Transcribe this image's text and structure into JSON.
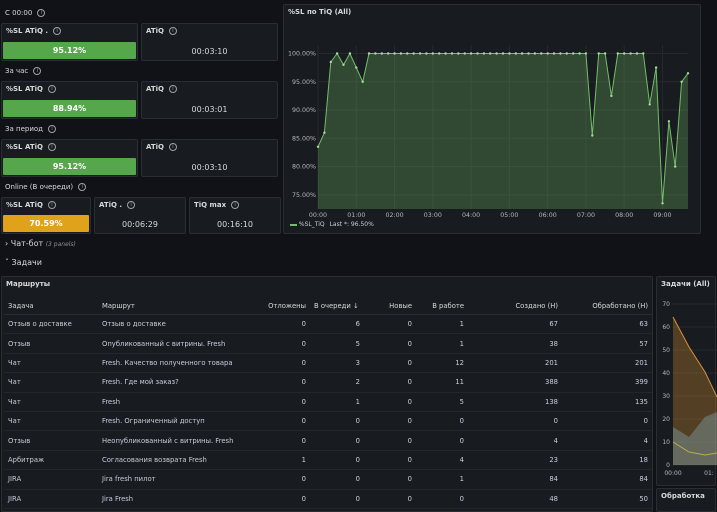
{
  "sections": {
    "c0000": "С 00:00",
    "hour": "За час",
    "period": "За период",
    "online": "Online (В очереди)"
  },
  "stats": {
    "row1": {
      "sl_title": "%SL ATiQ .",
      "sl_value": "95.12%",
      "sl_percent": 95.12,
      "atiq_title": "ATiQ",
      "atiq_value": "00:03:10"
    },
    "row2": {
      "sl_title": "%SL ATiQ",
      "sl_value": "88.94%",
      "sl_percent": 88.94,
      "atiq_title": "ATiQ",
      "atiq_value": "00:03:01"
    },
    "row3": {
      "sl_title": "%SL ATiQ",
      "sl_value": "95.12%",
      "sl_percent": 95.12,
      "atiq_title": "ATiQ",
      "atiq_value": "00:03:10"
    },
    "row4": {
      "sl_title": "%SL ATiQ",
      "sl_value": "70.59%",
      "sl_percent": 70.59,
      "atiq_title": "ATiQ .",
      "atiq_value": "00:06:29",
      "tiq_title": "TiQ max",
      "tiq_value": "00:16:10"
    }
  },
  "colors": {
    "green": "#56a64b",
    "orange": "#e0a11b",
    "series": "#73bf69"
  },
  "chart_data": {
    "type": "line",
    "title": "%SL по TiQ (All)",
    "x": [
      "00:00",
      "00:10",
      "00:20",
      "00:30",
      "00:40",
      "00:50",
      "01:00",
      "01:10",
      "01:20",
      "01:30",
      "01:40",
      "01:50",
      "02:00",
      "02:10",
      "02:20",
      "02:30",
      "02:40",
      "02:50",
      "03:00",
      "03:10",
      "03:20",
      "03:30",
      "03:40",
      "03:50",
      "04:00",
      "04:10",
      "04:20",
      "04:30",
      "04:40",
      "04:50",
      "05:00",
      "05:10",
      "05:20",
      "05:30",
      "05:40",
      "05:50",
      "06:00",
      "06:10",
      "06:20",
      "06:30",
      "06:40",
      "06:50",
      "07:00",
      "07:10",
      "07:20",
      "07:30",
      "07:40",
      "07:50",
      "08:00",
      "08:10",
      "08:20",
      "08:30",
      "08:40",
      "08:50",
      "09:00",
      "09:10",
      "09:20",
      "09:30",
      "09:40"
    ],
    "series": [
      {
        "name": "%SL_TiQ",
        "values": [
          83.5,
          86,
          98.5,
          100,
          98,
          100,
          97.5,
          95,
          100,
          100,
          100,
          100,
          100,
          100,
          100,
          100,
          100,
          100,
          100,
          100,
          100,
          100,
          100,
          100,
          100,
          100,
          100,
          100,
          100,
          100,
          100,
          100,
          100,
          100,
          100,
          100,
          100,
          100,
          100,
          100,
          100,
          100,
          100,
          85.5,
          100,
          100,
          92.5,
          100,
          100,
          100,
          100,
          100,
          91,
          97.5,
          73.5,
          88,
          80,
          95,
          96.5
        ]
      }
    ],
    "yticks": [
      "100.00%",
      "95.00%",
      "90.00%",
      "85.00%",
      "80.00%",
      "75.00%"
    ],
    "xticks": [
      "00:00",
      "01:00",
      "02:00",
      "03:00",
      "04:00",
      "05:00",
      "06:00",
      "07:00",
      "08:00",
      "09:00"
    ],
    "ylim": [
      72.5,
      101.5
    ],
    "legend": "%SL_TiQ",
    "legend_last": "Last *: 96.50%",
    "legend_position": "bottom-left"
  },
  "rows": {
    "chatbot": "Чат-бот",
    "chatbot_panels": "(3 panels)",
    "tasks": "Задачи"
  },
  "routes": {
    "title": "Маршруты",
    "columns": [
      "Задача",
      "Маршрут",
      "Отложены",
      "В очереди",
      "Новые",
      "В работе",
      "Создано (Н)",
      "Обработано (Н)"
    ],
    "sort_icon": "↓",
    "rows": [
      [
        "Отзыв о доставке",
        "Отзыв о доставке",
        "0",
        "6",
        "0",
        "1",
        "67",
        "63"
      ],
      [
        "Отзыв",
        "Опубликованный с витрины. Fresh",
        "0",
        "5",
        "0",
        "1",
        "38",
        "57"
      ],
      [
        "Чат",
        "Fresh. Качество полученного товара",
        "0",
        "3",
        "0",
        "12",
        "201",
        "201"
      ],
      [
        "Чат",
        "Fresh. Где мой заказ?",
        "0",
        "2",
        "0",
        "11",
        "388",
        "399"
      ],
      [
        "Чат",
        "Fresh",
        "0",
        "1",
        "0",
        "5",
        "138",
        "135"
      ],
      [
        "Чат",
        "Fresh. Ограниченный доступ",
        "0",
        "0",
        "0",
        "0",
        "0",
        "0"
      ],
      [
        "Отзыв",
        "Неопубликованный с витрины. Fresh",
        "0",
        "0",
        "0",
        "0",
        "4",
        "4"
      ],
      [
        "Арбитраж",
        "Согласования возврата Fresh",
        "1",
        "0",
        "0",
        "4",
        "23",
        "18"
      ],
      [
        "JIRA",
        "Jira fresh пилот",
        "0",
        "0",
        "0",
        "1",
        "84",
        "84"
      ],
      [
        "JIRA",
        "Jira Fresh",
        "0",
        "0",
        "0",
        "0",
        "48",
        "50"
      ]
    ]
  },
  "side": {
    "title": "Задачи (All)",
    "yticks": [
      "70",
      "60",
      "50",
      "40",
      "30",
      "20",
      "10",
      "0"
    ],
    "xtick": "00:00",
    "xtick2": "01:",
    "bottom_title": "Обработка"
  }
}
